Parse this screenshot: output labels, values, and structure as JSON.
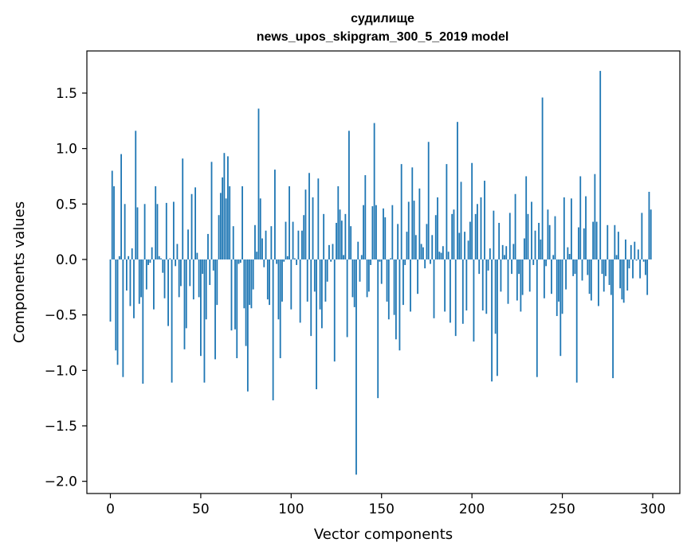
{
  "chart_data": {
    "type": "bar",
    "title": "судилище",
    "subtitle": "news_upos_skipgram_300_5_2019 model",
    "xlabel": "Vector components",
    "ylabel": "Components values",
    "xlim": [
      -13,
      315
    ],
    "ylim": [
      -2.11,
      1.88
    ],
    "xticks": [
      0,
      50,
      100,
      150,
      200,
      250,
      300
    ],
    "yticks": [
      1.5,
      1.0,
      0.5,
      0.0,
      -0.5,
      -1.0,
      -1.5,
      -2.0
    ],
    "ytick_labels": [
      "1.5",
      "1.0",
      "0.5",
      "0.0",
      "−0.5",
      "−1.0",
      "−1.5",
      "−2.0"
    ],
    "bar_color": "#1f77b4",
    "grid": false,
    "x": [
      0,
      1,
      2,
      3,
      4,
      5,
      6,
      7,
      8,
      9,
      10,
      11,
      12,
      13,
      14,
      15,
      16,
      17,
      18,
      19,
      20,
      21,
      22,
      23,
      24,
      25,
      26,
      27,
      28,
      29,
      30,
      31,
      32,
      33,
      34,
      35,
      36,
      37,
      38,
      39,
      40,
      41,
      42,
      43,
      44,
      45,
      46,
      47,
      48,
      49,
      50,
      51,
      52,
      53,
      54,
      55,
      56,
      57,
      58,
      59,
      60,
      61,
      62,
      63,
      64,
      65,
      66,
      67,
      68,
      69,
      70,
      71,
      72,
      73,
      74,
      75,
      76,
      77,
      78,
      79,
      80,
      81,
      82,
      83,
      84,
      85,
      86,
      87,
      88,
      89,
      90,
      91,
      92,
      93,
      94,
      95,
      96,
      97,
      98,
      99,
      100,
      101,
      102,
      103,
      104,
      105,
      106,
      107,
      108,
      109,
      110,
      111,
      112,
      113,
      114,
      115,
      116,
      117,
      118,
      119,
      120,
      121,
      122,
      123,
      124,
      125,
      126,
      127,
      128,
      129,
      130,
      131,
      132,
      133,
      134,
      135,
      136,
      137,
      138,
      139,
      140,
      141,
      142,
      143,
      144,
      145,
      146,
      147,
      148,
      149,
      150,
      151,
      152,
      153,
      154,
      155,
      156,
      157,
      158,
      159,
      160,
      161,
      162,
      163,
      164,
      165,
      166,
      167,
      168,
      169,
      170,
      171,
      172,
      173,
      174,
      175,
      176,
      177,
      178,
      179,
      180,
      181,
      182,
      183,
      184,
      185,
      186,
      187,
      188,
      189,
      190,
      191,
      192,
      193,
      194,
      195,
      196,
      197,
      198,
      199,
      200,
      201,
      202,
      203,
      204,
      205,
      206,
      207,
      208,
      209,
      210,
      211,
      212,
      213,
      214,
      215,
      216,
      217,
      218,
      219,
      220,
      221,
      222,
      223,
      224,
      225,
      226,
      227,
      228,
      229,
      230,
      231,
      232,
      233,
      234,
      235,
      236,
      237,
      238,
      239,
      240,
      241,
      242,
      243,
      244,
      245,
      246,
      247,
      248,
      249,
      250,
      251,
      252,
      253,
      254,
      255,
      256,
      257,
      258,
      259,
      260,
      261,
      262,
      263,
      264,
      265,
      266,
      267,
      268,
      269,
      270,
      271,
      272,
      273,
      274,
      275,
      276,
      277,
      278,
      279,
      280,
      281,
      282,
      283,
      284,
      285,
      286,
      287,
      288,
      289,
      290,
      291,
      292,
      293,
      294,
      295,
      296,
      297,
      298,
      299
    ],
    "values": [
      -0.56,
      0.8,
      0.66,
      -0.82,
      -0.95,
      0.03,
      0.95,
      -1.06,
      0.5,
      -0.28,
      0.03,
      -0.42,
      0.1,
      -0.53,
      1.16,
      0.47,
      -0.4,
      -0.34,
      -1.12,
      0.5,
      -0.27,
      -0.05,
      -0.03,
      0.11,
      -0.45,
      0.66,
      0.5,
      0.03,
      0.01,
      -0.12,
      -0.35,
      0.51,
      -0.6,
      0.01,
      -1.11,
      0.52,
      -0.06,
      0.14,
      -0.34,
      -0.24,
      0.91,
      -0.81,
      -0.62,
      0.27,
      -0.24,
      0.59,
      -0.36,
      0.65,
      0.06,
      -0.34,
      -0.87,
      -0.13,
      -1.11,
      -0.54,
      0.23,
      -0.23,
      0.88,
      -0.1,
      -0.9,
      -0.41,
      0.4,
      0.6,
      0.74,
      0.96,
      0.55,
      0.93,
      0.66,
      -0.64,
      0.3,
      -0.63,
      -0.89,
      -0.04,
      -0.03,
      0.66,
      -0.44,
      -0.78,
      -1.19,
      -0.41,
      -0.44,
      -0.27,
      0.31,
      0.07,
      1.36,
      0.55,
      0.19,
      -0.07,
      0.26,
      -0.36,
      -0.41,
      0.3,
      -1.27,
      0.81,
      -0.04,
      -0.54,
      -0.89,
      -0.38,
      -0.02,
      0.34,
      0.03,
      0.66,
      -0.45,
      0.34,
      0.01,
      -0.05,
      0.26,
      -0.57,
      0.26,
      0.4,
      0.63,
      -0.38,
      0.78,
      -0.69,
      0.56,
      -0.29,
      -1.17,
      0.73,
      -0.45,
      -0.62,
      0.41,
      -0.38,
      -0.2,
      0.13,
      -0.02,
      0.14,
      -0.92,
      0.33,
      0.66,
      0.45,
      0.35,
      0.04,
      0.41,
      -0.7,
      1.16,
      0.3,
      -0.34,
      -0.43,
      -1.94,
      0.16,
      -0.2,
      0.04,
      0.49,
      0.76,
      -0.34,
      -0.29,
      -0.05,
      0.48,
      1.23,
      0.49,
      -1.25,
      -0.02,
      -0.22,
      0.46,
      0.38,
      -0.38,
      -0.54,
      0.01,
      0.49,
      -0.5,
      -0.72,
      0.32,
      -0.82,
      0.86,
      -0.41,
      -0.05,
      0.25,
      0.52,
      -0.47,
      0.83,
      0.53,
      0.22,
      -0.31,
      0.64,
      0.14,
      0.11,
      -0.08,
      0.32,
      1.06,
      -0.04,
      0.22,
      -0.53,
      0.4,
      0.56,
      0.07,
      0.06,
      0.12,
      -0.47,
      0.86,
      0.07,
      -0.57,
      0.41,
      0.45,
      -0.69,
      1.24,
      0.24,
      0.7,
      -0.58,
      0.25,
      -0.46,
      0.17,
      0.34,
      0.87,
      -0.74,
      0.41,
      0.5,
      -0.13,
      0.56,
      -0.46,
      0.71,
      -0.49,
      -0.1,
      0.1,
      -1.1,
      0.44,
      -0.67,
      -1.05,
      0.33,
      -0.29,
      0.13,
      0.04,
      0.12,
      -0.4,
      0.42,
      -0.13,
      0.14,
      0.59,
      -0.37,
      -0.13,
      -0.47,
      -0.32,
      0.19,
      0.75,
      0.41,
      -0.29,
      0.52,
      -0.05,
      0.26,
      -1.06,
      0.33,
      0.18,
      1.46,
      -0.35,
      -0.06,
      0.45,
      0.31,
      -0.31,
      0.04,
      0.39,
      -0.51,
      -0.38,
      -0.87,
      -0.49,
      0.56,
      -0.27,
      0.11,
      0.05,
      0.55,
      -0.15,
      -0.13,
      -1.11,
      0.29,
      0.75,
      -0.19,
      0.28,
      0.57,
      -0.14,
      -0.31,
      -0.37,
      0.34,
      0.77,
      0.34,
      -0.42,
      1.7,
      -0.13,
      -0.29,
      -0.15,
      0.31,
      -0.23,
      -0.32,
      -1.07,
      0.31,
      0.04,
      0.25,
      -0.26,
      -0.36,
      -0.39,
      0.18,
      -0.28,
      -0.08,
      0.13,
      -0.17,
      0.16,
      -0.01,
      0.09,
      -0.17,
      0.42,
      -0.02,
      -0.14,
      -0.32,
      0.61,
      0.45
    ]
  }
}
